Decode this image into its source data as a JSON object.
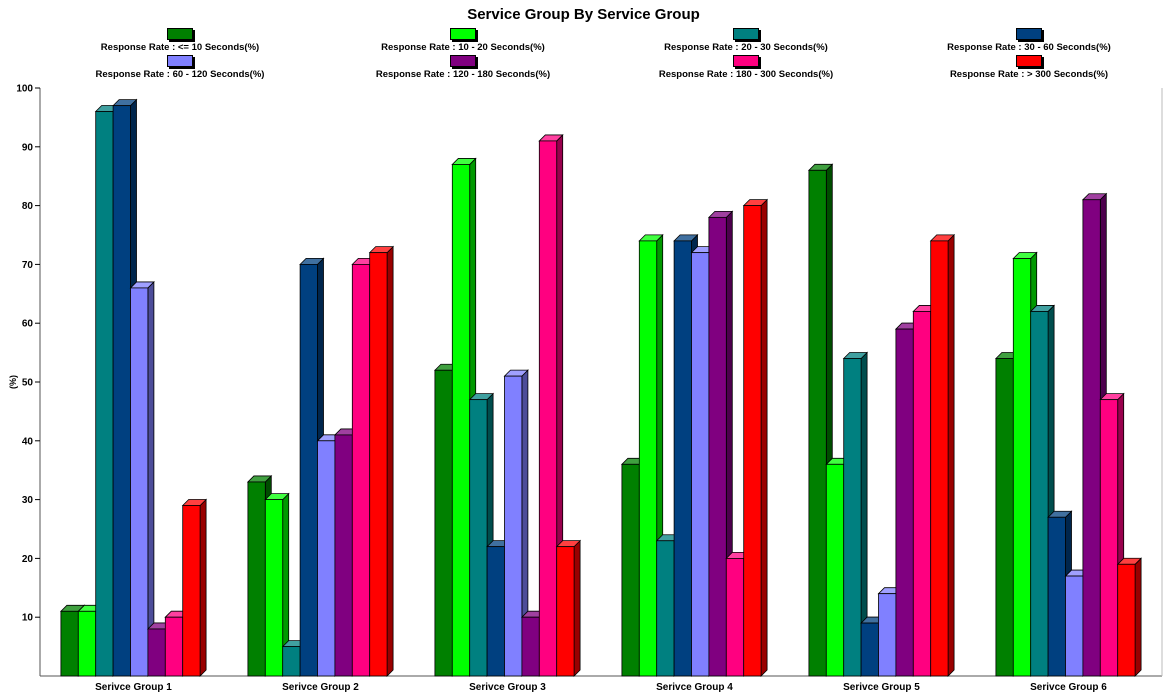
{
  "chart_data": {
    "type": "bar",
    "title": "Service Group By Service Group",
    "ylabel": "(%)",
    "xlabel": "",
    "ylim": [
      0,
      100
    ],
    "yticks": [
      10,
      20,
      30,
      40,
      50,
      60,
      70,
      80,
      90,
      100
    ],
    "grid": false,
    "legend_position": "top",
    "bar_style": "3d",
    "categories": [
      "Serivce Group 1",
      "Serivce Group 2",
      "Serivce Group 3",
      "Serivce Group 4",
      "Serivce Group 5",
      "Serivce Group 6"
    ],
    "series": [
      {
        "name": "Response Rate : <= 10 Seconds(%)",
        "color": "#008000",
        "values": [
          11,
          33,
          52,
          36,
          86,
          54
        ]
      },
      {
        "name": "Response Rate : 10 - 20 Seconds(%)",
        "color": "#00ff00",
        "values": [
          11,
          30,
          87,
          74,
          36,
          71
        ]
      },
      {
        "name": "Response Rate : 20 - 30 Seconds(%)",
        "color": "#008080",
        "values": [
          96,
          5,
          47,
          23,
          54,
          62
        ]
      },
      {
        "name": "Response Rate : 30 - 60 Seconds(%)",
        "color": "#004080",
        "values": [
          97,
          70,
          22,
          74,
          9,
          27
        ]
      },
      {
        "name": "Response Rate : 60 - 120 Seconds(%)",
        "color": "#8080ff",
        "values": [
          66,
          40,
          51,
          72,
          14,
          17
        ]
      },
      {
        "name": "Response Rate : 120 - 180 Seconds(%)",
        "color": "#800080",
        "values": [
          8,
          41,
          10,
          78,
          59,
          81
        ]
      },
      {
        "name": "Response Rate : 180 - 300 Seconds(%)",
        "color": "#ff0080",
        "values": [
          10,
          70,
          91,
          20,
          62,
          47
        ]
      },
      {
        "name": "Response Rate : > 300 Seconds(%)",
        "color": "#ff0000",
        "values": [
          29,
          72,
          22,
          80,
          74,
          19
        ]
      }
    ]
  }
}
